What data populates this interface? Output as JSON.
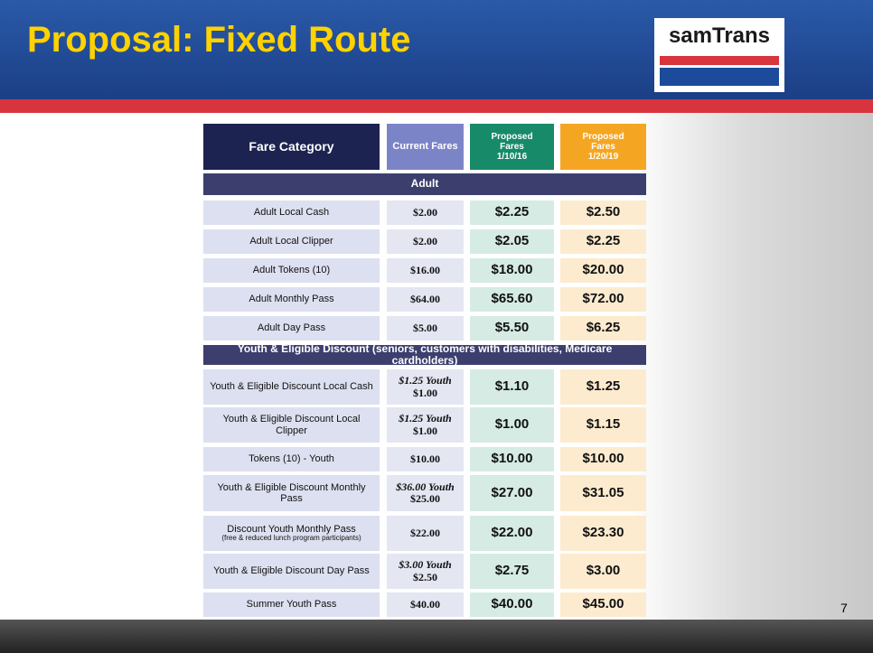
{
  "header": {
    "title": "Proposal: Fixed Route",
    "logo": "samTrans"
  },
  "table": {
    "headers": [
      [
        "Fare Category"
      ],
      [
        "Current Fares"
      ],
      [
        "Proposed",
        "Fares",
        "1/10/16"
      ],
      [
        "Proposed",
        "Fares",
        "1/20/19"
      ]
    ],
    "sections": [
      {
        "title": "Adult",
        "rows": [
          {
            "category": "Adult Local Cash",
            "current": "$2.00",
            "proposed_2016": "$2.25",
            "proposed_2019": "$2.50"
          },
          {
            "category": "Adult Local Clipper",
            "current": "$2.00",
            "proposed_2016": "$2.05",
            "proposed_2019": "$2.25"
          },
          {
            "category": "Adult Tokens (10)",
            "current": "$16.00",
            "proposed_2016": "$18.00",
            "proposed_2019": "$20.00"
          },
          {
            "category": "Adult Monthly Pass",
            "current": "$64.00",
            "proposed_2016": "$65.60",
            "proposed_2019": "$72.00"
          },
          {
            "category": "Adult Day Pass",
            "current": "$5.00",
            "proposed_2016": "$5.50",
            "proposed_2019": "$6.25"
          }
        ]
      },
      {
        "title": "Youth & Eligible Discount (seniors, customers with disabilities, Medicare cardholders)",
        "rows": [
          {
            "category": "Youth & Eligible Discount Local Cash",
            "current_youth": "$1.25 Youth",
            "current": "$1.00",
            "proposed_2016": "$1.10",
            "proposed_2019": "$1.25"
          },
          {
            "category": "Youth & Eligible Discount Local Clipper",
            "current_youth": "$1.25 Youth",
            "current": "$1.00",
            "proposed_2016": "$1.00",
            "proposed_2019": "$1.15"
          },
          {
            "category": "Tokens (10) - Youth",
            "current": "$10.00",
            "proposed_2016": "$10.00",
            "proposed_2019": "$10.00"
          },
          {
            "category": "Youth & Eligible Discount Monthly Pass",
            "current_youth": "$36.00 Youth",
            "current": "$25.00",
            "proposed_2016": "$27.00",
            "proposed_2019": "$31.05"
          },
          {
            "category": "Discount Youth Monthly Pass",
            "category_note": "(free & reduced lunch program participants)",
            "current": "$22.00",
            "proposed_2016": "$22.00",
            "proposed_2019": "$23.30"
          },
          {
            "category": "Youth & Eligible Discount Day Pass",
            "current_youth": "$3.00 Youth",
            "current": "$2.50",
            "proposed_2016": "$2.75",
            "proposed_2019": "$3.00"
          },
          {
            "category": "Summer Youth Pass",
            "current": "$40.00",
            "proposed_2016": "$40.00",
            "proposed_2019": "$45.00"
          }
        ]
      }
    ]
  },
  "footer": {
    "page": "7"
  }
}
